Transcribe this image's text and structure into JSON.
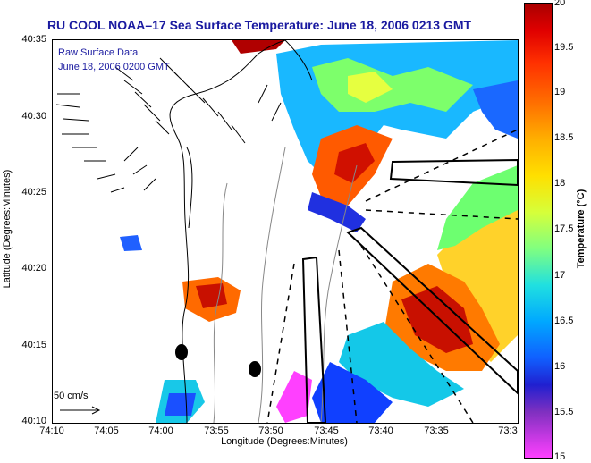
{
  "title": "RU COOL  NOAA–17  Sea Surface Temperature:  June 18, 2006 0213 GMT",
  "annotation": {
    "line1": "Raw Surface Data",
    "line2": "June 18, 2006 0200 GMT"
  },
  "axes": {
    "xlabel": "Longitude (Degrees:Minutes)",
    "ylabel": "Latitude (Degrees:Minutes)",
    "xticks": [
      "74:10",
      "74:05",
      "74:00",
      "73:55",
      "73:50",
      "73:45",
      "73:40",
      "73:35",
      "73:3"
    ],
    "yticks": [
      "40:35",
      "40:30",
      "40:25",
      "40:20",
      "40:15",
      "40:10"
    ]
  },
  "scale_vector": "50 cm/s",
  "colorbar": {
    "label": "Temperature (°C)",
    "ticks": [
      "20",
      "19.5",
      "19",
      "18.5",
      "18",
      "17.5",
      "17",
      "16.5",
      "16",
      "15.5",
      "15"
    ]
  },
  "colors": {
    "title": "#1a1aa0",
    "warm": "#cc2000",
    "cool": "#00b0ff"
  }
}
